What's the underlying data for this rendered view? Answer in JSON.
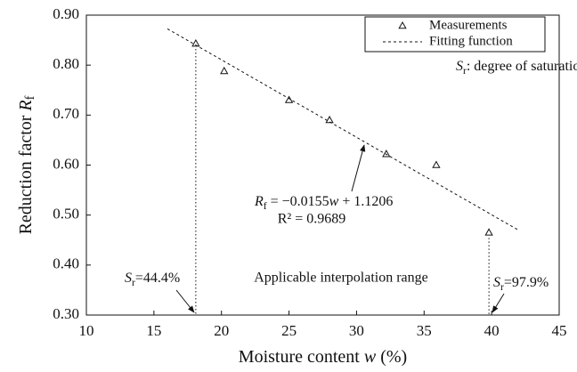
{
  "chart_data": {
    "type": "scatter",
    "x_label": [
      "Moisture content ",
      "w",
      " (%)"
    ],
    "y_label": [
      "Reduction factor ",
      "R",
      "f"
    ],
    "xlim": [
      10,
      45
    ],
    "xticks": [
      10,
      15,
      20,
      25,
      30,
      35,
      40,
      45
    ],
    "ylim": [
      0.3,
      0.9
    ],
    "yticks": [
      {
        "value": 0.3,
        "label": "0.30"
      },
      {
        "value": 0.4,
        "label": "0.40"
      },
      {
        "value": 0.5,
        "label": "0.50"
      },
      {
        "value": 0.6,
        "label": "0.60"
      },
      {
        "value": 0.7,
        "label": "0.70"
      },
      {
        "value": 0.8,
        "label": "0.80"
      },
      {
        "value": 0.9,
        "label": "0.90"
      }
    ],
    "legend": "upper right",
    "series": [
      {
        "name": "Measurements",
        "marker": "triangle",
        "color": "#111111",
        "x": [
          18.1,
          20.2,
          25.0,
          28.0,
          32.2,
          35.9,
          39.8
        ],
        "values": [
          0.843,
          0.788,
          0.73,
          0.69,
          0.622,
          0.6,
          0.465
        ]
      },
      {
        "name": "Fitting function",
        "style": "dashed",
        "color": "#111111",
        "x": [
          16,
          42
        ],
        "values": [
          0.8726,
          0.4696
        ]
      }
    ],
    "legend_note": [
      "S",
      "r",
      ": degree of saturation"
    ],
    "equation": [
      "R",
      "f",
      " = −0.0155",
      "w",
      " + 1.1206"
    ],
    "r_squared": "R² = 0.9689",
    "range_label": "Applicable interpolation range",
    "sr_low": [
      "S",
      "r",
      "=44.4%"
    ],
    "sr_high": [
      "S",
      "r",
      "=97.9%"
    ]
  }
}
